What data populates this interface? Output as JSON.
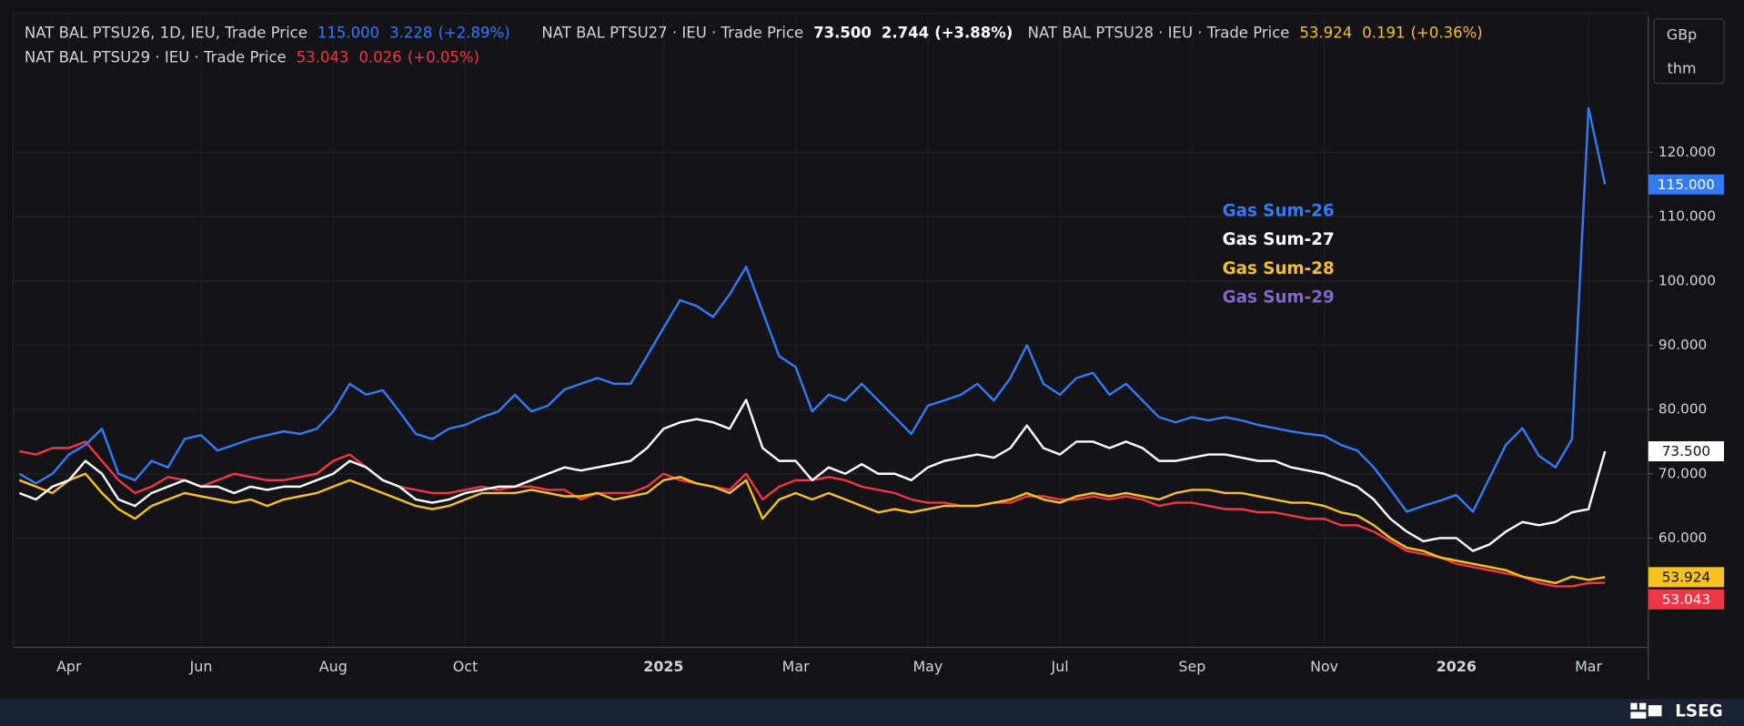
{
  "chart_data": {
    "type": "line",
    "units": [
      "GBp",
      "thm"
    ],
    "logo": "LSEG",
    "grid": true,
    "ylim": [
      43,
      141.1
    ],
    "yticks": [
      {
        "value": 60,
        "label": "60.000"
      },
      {
        "value": 70,
        "label": "70.000"
      },
      {
        "value": 80,
        "label": "80.000"
      },
      {
        "value": 90,
        "label": "90.000"
      },
      {
        "value": 100,
        "label": "100.000"
      },
      {
        "value": 110,
        "label": "110.000"
      },
      {
        "value": 120,
        "label": "120.000"
      }
    ],
    "categories": [
      null,
      null,
      null,
      "Apr",
      null,
      null,
      null,
      null,
      null,
      null,
      null,
      "Jun",
      null,
      null,
      null,
      null,
      null,
      null,
      null,
      "Aug",
      null,
      null,
      null,
      null,
      null,
      null,
      null,
      "Oct",
      null,
      null,
      null,
      null,
      null,
      null,
      null,
      null,
      null,
      null,
      null,
      "2025",
      null,
      null,
      null,
      null,
      null,
      null,
      null,
      "Mar",
      null,
      null,
      null,
      null,
      null,
      null,
      null,
      "May",
      null,
      null,
      null,
      null,
      null,
      null,
      null,
      "Jul",
      null,
      null,
      null,
      null,
      null,
      null,
      null,
      "Sep",
      null,
      null,
      null,
      null,
      null,
      null,
      null,
      "Nov",
      null,
      null,
      null,
      null,
      null,
      null,
      null,
      "2026",
      null,
      null,
      null,
      null,
      null,
      null,
      null,
      "Mar",
      null
    ],
    "series": [
      {
        "name": "Gas Sum-26",
        "title": "NAT BAL PTSU26, 1D, IEU, Trade Price",
        "last_label": "115.000",
        "change": "3.228",
        "change_pct": "(+2.89%)",
        "color": "#3479f6",
        "legend_color": "#3479f6",
        "tag_text_color": "#ffffff",
        "values": [
          70,
          68.5,
          70,
          73,
          74.5,
          77,
          70,
          69,
          72,
          71,
          75.4,
          76,
          73.6,
          74.5,
          75.4,
          76,
          76.6,
          76.2,
          77,
          79.7,
          84,
          82.3,
          83,
          79.7,
          76.2,
          75.4,
          77,
          77.6,
          78.8,
          79.7,
          82.3,
          79.7,
          80.6,
          83.1,
          84,
          84.9,
          84,
          84,
          88.3,
          92.7,
          97,
          96.1,
          94.4,
          97.9,
          102.2,
          95.2,
          88.3,
          86.6,
          79.7,
          82.3,
          81.4,
          84,
          81.4,
          78.8,
          76.2,
          80.6,
          81.4,
          82.3,
          84,
          81.4,
          84.9,
          90,
          84,
          82.3,
          84.9,
          85.7,
          82.3,
          84,
          81.4,
          78.8,
          78,
          78.8,
          78.3,
          78.8,
          78.3,
          77.6,
          77.1,
          76.6,
          76.2,
          75.9,
          74.5,
          73.6,
          71,
          67.6,
          64.1,
          65,
          65.8,
          66.7,
          64.1,
          69.3,
          74.5,
          77.1,
          72.8,
          71,
          75.4,
          126.9,
          115
        ]
      },
      {
        "name": "Gas Sum-27",
        "title": "NAT BAL PTSU27 · IEU · Trade Price",
        "last_label": "73.500",
        "change": "2.744",
        "change_pct": "(+3.88%)",
        "color": "#ffffff",
        "legend_color": "#ffffff",
        "tag_text_color": "#111111",
        "values": [
          67,
          66,
          68,
          69,
          72,
          70,
          66,
          65,
          67,
          68,
          69,
          68,
          68,
          67,
          68,
          67.5,
          68,
          68,
          69,
          70,
          72,
          71,
          69,
          68,
          66,
          65.5,
          66,
          67,
          67.5,
          68,
          68,
          69,
          70,
          71,
          70.5,
          71,
          71.5,
          72,
          74,
          77,
          78,
          78.5,
          78,
          77,
          81.5,
          74,
          72,
          72,
          69,
          71,
          70,
          71.5,
          70,
          70,
          69,
          71,
          72,
          72.5,
          73,
          72.5,
          74,
          77.5,
          74,
          73,
          75,
          75,
          74,
          75,
          74,
          72,
          72,
          72.5,
          73,
          73,
          72.5,
          72,
          72,
          71,
          70.5,
          70,
          69,
          68,
          66,
          63,
          61,
          59.5,
          60,
          60,
          58,
          59,
          61,
          62.5,
          62,
          62.5,
          64,
          64.5,
          73.5
        ]
      },
      {
        "name": "Gas Sum-28",
        "title": "NAT BAL PTSU28 · IEU · Trade Price",
        "last_label": "53.924",
        "change": "0.191",
        "change_pct": "(+0.36%)",
        "color": "#f7c31a",
        "legend_color": "#f7c31a",
        "tag_text_color": "#111111",
        "values": [
          69,
          68,
          67,
          69,
          70,
          67,
          64.5,
          63,
          65,
          66,
          67,
          66.5,
          66,
          65.5,
          66,
          65,
          66,
          66.5,
          67,
          68,
          69,
          68,
          67,
          66,
          65,
          64.5,
          65,
          66,
          67,
          67,
          67,
          67.5,
          67,
          66.5,
          66.5,
          67,
          66,
          66.5,
          67,
          69,
          69.5,
          68.5,
          68,
          67,
          69,
          63,
          66,
          67,
          66,
          67,
          66,
          65,
          64,
          64.5,
          64,
          64.5,
          65,
          65,
          65,
          65.5,
          66,
          67,
          66,
          65.5,
          66.5,
          67,
          66.5,
          67,
          66.5,
          66,
          67,
          67.5,
          67.5,
          67,
          67,
          66.5,
          66,
          65.5,
          65.5,
          65,
          64,
          63.5,
          62,
          60,
          58.5,
          58,
          57,
          56.5,
          56,
          55.5,
          55,
          54,
          53.5,
          53,
          54,
          53.5,
          53.924
        ]
      },
      {
        "name": "Gas Sum-29",
        "title": "NAT BAL PTSU29 · IEU · Trade Price",
        "last_label": "53.043",
        "change": "0.026",
        "change_pct": "(+0.05%)",
        "color": "#f23645",
        "legend_color": "#8366cc",
        "tag_text_color": "#ffffff",
        "values": [
          73.5,
          73,
          74,
          74,
          75,
          72,
          69,
          67,
          68,
          69.5,
          69,
          68,
          69,
          70,
          69.5,
          69,
          69,
          69.5,
          70,
          72,
          73,
          71,
          69,
          68,
          67.5,
          67,
          67,
          67.5,
          68,
          67.5,
          68,
          68,
          67.5,
          67.5,
          66,
          67,
          67,
          67,
          68,
          70,
          69,
          68.5,
          68,
          67.5,
          70,
          66,
          68,
          69,
          69,
          69.5,
          69,
          68,
          67.5,
          67,
          66,
          65.5,
          65.5,
          65,
          65,
          65.5,
          65.5,
          66.5,
          66.5,
          66,
          66,
          66.5,
          66,
          66.5,
          66,
          65,
          65.5,
          65.5,
          65,
          64.5,
          64.5,
          64,
          64,
          63.5,
          63,
          63,
          62,
          62,
          61,
          59.5,
          58,
          57.5,
          57,
          56,
          55.5,
          55,
          54.5,
          54,
          53,
          52.5,
          52.5,
          53,
          53.043
        ]
      }
    ]
  }
}
